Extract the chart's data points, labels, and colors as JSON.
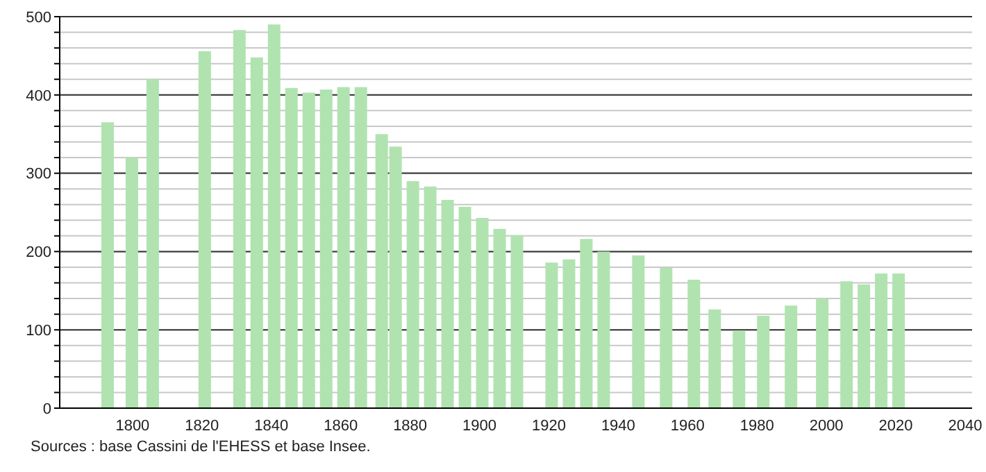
{
  "chart_data": {
    "type": "bar",
    "x": [
      1793,
      1800,
      1806,
      1821,
      1831,
      1836,
      1841,
      1846,
      1851,
      1856,
      1861,
      1866,
      1872,
      1876,
      1881,
      1886,
      1891,
      1896,
      1901,
      1906,
      1911,
      1921,
      1926,
      1931,
      1936,
      1946,
      1954,
      1962,
      1968,
      1975,
      1982,
      1990,
      1999,
      2006,
      2011,
      2016,
      2021
    ],
    "values": [
      365,
      320,
      420,
      456,
      483,
      448,
      490,
      409,
      403,
      407,
      410,
      410,
      350,
      334,
      290,
      283,
      266,
      257,
      243,
      229,
      221,
      186,
      190,
      216,
      200,
      195,
      179,
      164,
      126,
      99,
      118,
      131,
      140,
      162,
      158,
      172,
      172
    ],
    "color": "#b0e3b0",
    "xlim": [
      1779,
      2042
    ],
    "xticks": [
      1800,
      1820,
      1840,
      1860,
      1880,
      1900,
      1920,
      1940,
      1960,
      1980,
      2000,
      2020,
      2040
    ],
    "ylim": [
      0,
      500
    ],
    "yticks": [
      0,
      {
        "value": 20,
        "label": null
      },
      {
        "value": 40,
        "label": null
      },
      {
        "value": 60,
        "label": null
      },
      {
        "value": 80,
        "label": null
      },
      100,
      {
        "value": 120,
        "label": null
      },
      {
        "value": 140,
        "label": null
      },
      {
        "value": 160,
        "label": null
      },
      {
        "value": 180,
        "label": null
      },
      200,
      {
        "value": 220,
        "label": null
      },
      {
        "value": 240,
        "label": null
      },
      {
        "value": 260,
        "label": null
      },
      {
        "value": 280,
        "label": null
      },
      300,
      {
        "value": 320,
        "label": null
      },
      {
        "value": 340,
        "label": null
      },
      {
        "value": 360,
        "label": null
      },
      {
        "value": 380,
        "label": null
      },
      400,
      {
        "value": 420,
        "label": null
      },
      {
        "value": 440,
        "label": null
      },
      {
        "value": 460,
        "label": null
      },
      {
        "value": 480,
        "label": null
      },
      500
    ],
    "grid": "y",
    "annotations": [
      "Sources : base Cassini de l'EHESS et base Insee."
    ]
  }
}
